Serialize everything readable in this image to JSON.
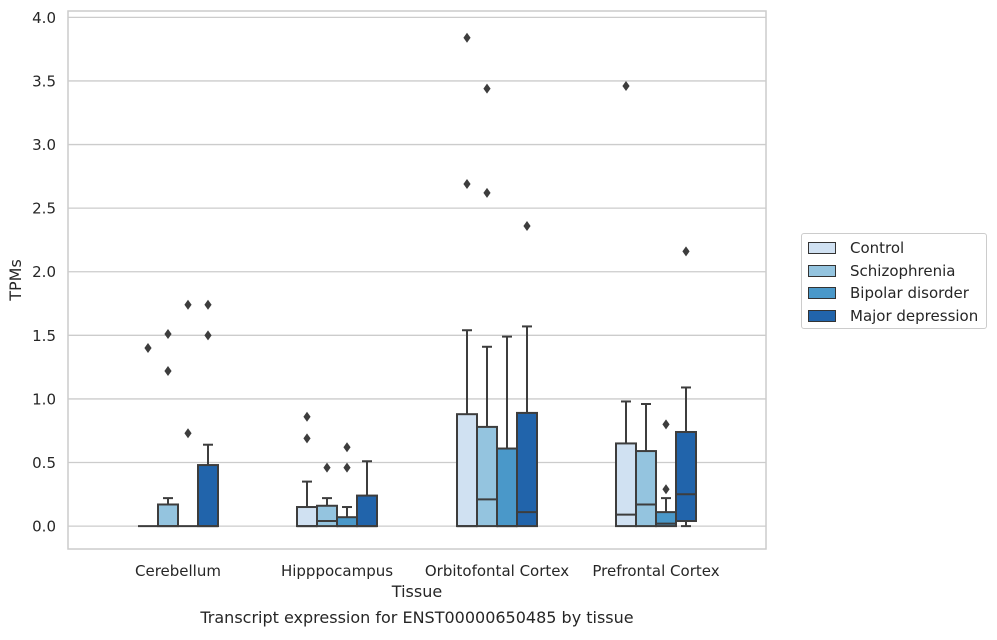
{
  "chart_data": {
    "type": "boxplot",
    "title": "Transcript expression for ENST00000650485 by tissue",
    "xlabel": "Tissue",
    "ylabel": "TPMs",
    "ylim": [
      -0.18,
      4.05
    ],
    "yticks": [
      0.0,
      0.5,
      1.0,
      1.5,
      2.0,
      2.5,
      3.0,
      3.5,
      4.0
    ],
    "ytick_labels": [
      "0.0",
      "0.5",
      "1.0",
      "1.5",
      "2.0",
      "2.5",
      "3.0",
      "3.5",
      "4.0"
    ],
    "grid": "horizontal",
    "legend_position": "right",
    "categories": [
      "Cerebellum",
      "Hipppocampus",
      "Orbitofontal Cortex",
      "Prefrontal Cortex"
    ],
    "series": [
      {
        "name": "Control",
        "color": "#d0e1f2",
        "boxes": [
          {
            "whislo": 0.0,
            "q1": 0.0,
            "med": 0.0,
            "q3": 0.0,
            "whishi": 0.0,
            "fliers": [
              1.4
            ]
          },
          {
            "whislo": 0.0,
            "q1": 0.0,
            "med": 0.0,
            "q3": 0.15,
            "whishi": 0.35,
            "fliers": [
              0.69,
              0.86
            ]
          },
          {
            "whislo": 0.0,
            "q1": 0.0,
            "med": 0.0,
            "q3": 0.88,
            "whishi": 1.54,
            "fliers": [
              2.69,
              3.84
            ]
          },
          {
            "whislo": 0.0,
            "q1": 0.0,
            "med": 0.09,
            "q3": 0.65,
            "whishi": 0.98,
            "fliers": [
              3.46
            ]
          }
        ]
      },
      {
        "name": "Schizophrenia",
        "color": "#94c4df",
        "boxes": [
          {
            "whislo": 0.0,
            "q1": 0.0,
            "med": 0.0,
            "q3": 0.17,
            "whishi": 0.22,
            "fliers": [
              1.22,
              1.51
            ]
          },
          {
            "whislo": 0.0,
            "q1": 0.0,
            "med": 0.04,
            "q3": 0.16,
            "whishi": 0.22,
            "fliers": [
              0.46
            ]
          },
          {
            "whislo": 0.0,
            "q1": 0.0,
            "med": 0.21,
            "q3": 0.78,
            "whishi": 1.41,
            "fliers": [
              2.62,
              3.44
            ]
          },
          {
            "whislo": 0.0,
            "q1": 0.0,
            "med": 0.17,
            "q3": 0.59,
            "whishi": 0.96,
            "fliers": []
          }
        ]
      },
      {
        "name": "Bipolar disorder",
        "color": "#4a98c9",
        "boxes": [
          {
            "whislo": 0.0,
            "q1": 0.0,
            "med": 0.0,
            "q3": 0.0,
            "whishi": 0.0,
            "fliers": [
              0.73,
              1.74
            ]
          },
          {
            "whislo": 0.0,
            "q1": 0.0,
            "med": 0.0,
            "q3": 0.07,
            "whishi": 0.15,
            "fliers": [
              0.46,
              0.62
            ]
          },
          {
            "whislo": 0.0,
            "q1": 0.0,
            "med": 0.0,
            "q3": 0.61,
            "whishi": 1.49,
            "fliers": []
          },
          {
            "whislo": 0.0,
            "q1": 0.0,
            "med": 0.02,
            "q3": 0.11,
            "whishi": 0.22,
            "fliers": [
              0.29,
              0.8
            ]
          }
        ]
      },
      {
        "name": "Major depression",
        "color": "#2164ab",
        "boxes": [
          {
            "whislo": 0.0,
            "q1": 0.0,
            "med": 0.0,
            "q3": 0.48,
            "whishi": 0.64,
            "fliers": [
              1.5,
              1.74
            ]
          },
          {
            "whislo": 0.0,
            "q1": 0.0,
            "med": 0.0,
            "q3": 0.24,
            "whishi": 0.51,
            "fliers": []
          },
          {
            "whislo": 0.0,
            "q1": 0.0,
            "med": 0.11,
            "q3": 0.89,
            "whishi": 1.57,
            "fliers": [
              2.36
            ]
          },
          {
            "whislo": 0.0,
            "q1": 0.04,
            "med": 0.25,
            "q3": 0.74,
            "whishi": 1.09,
            "fliers": [
              2.16
            ]
          }
        ]
      }
    ]
  }
}
